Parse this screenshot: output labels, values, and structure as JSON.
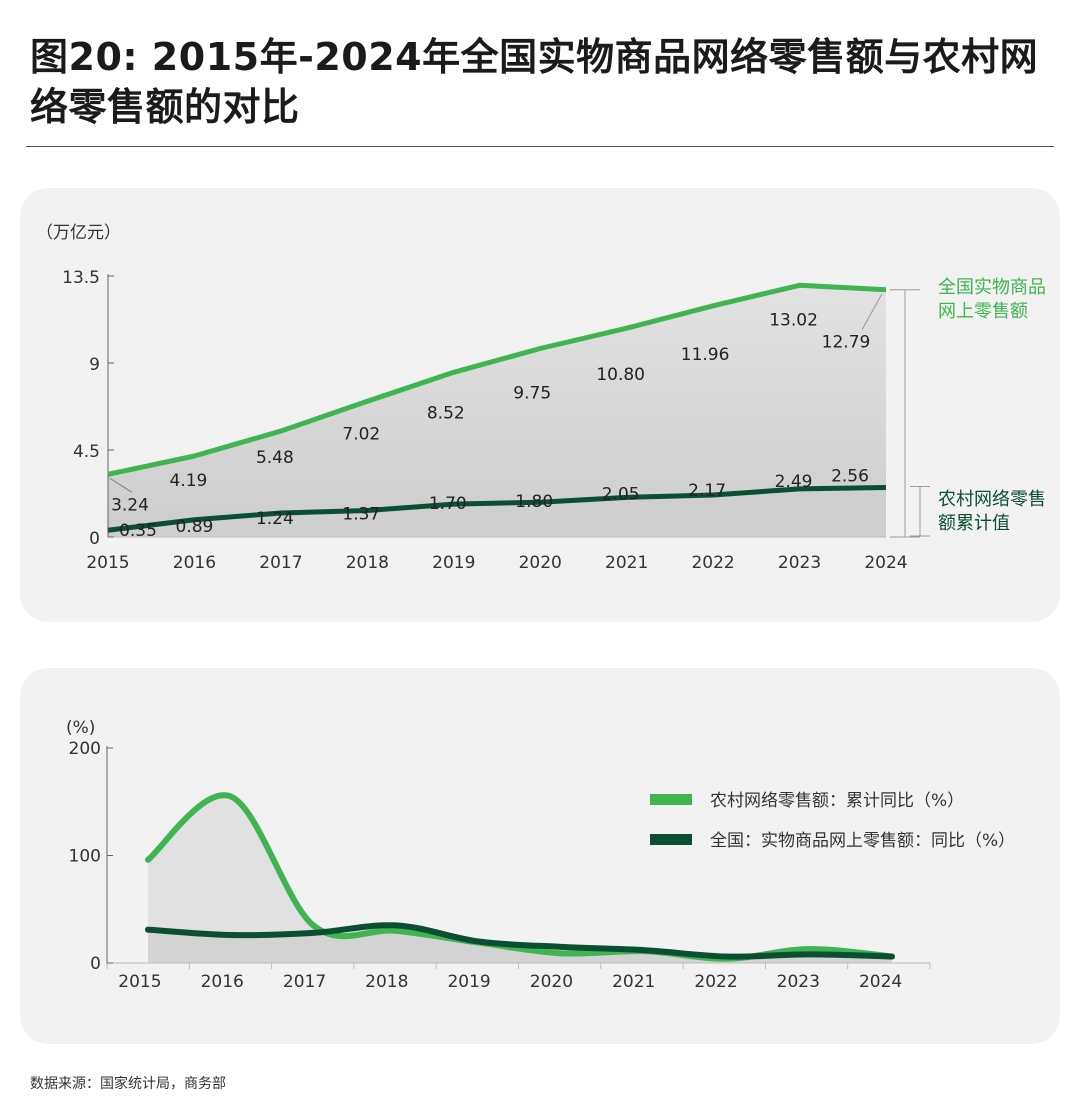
{
  "title": "图20: 2015年-2024年全国实物商品网络零售额与农村网络零售额的对比",
  "source": "数据来源：国家统计局，商务部",
  "colors": {
    "national": "#3fb450",
    "rural": "#0a4f32",
    "area_top": "#e2e2e2",
    "area_bottom": "#cdcdcd",
    "label_green": "#3fb450",
    "label_dark": "#0a4f32"
  },
  "chart_data": [
    {
      "type": "area",
      "unit": "（万亿元）",
      "categories": [
        "2015",
        "2016",
        "2017",
        "2018",
        "2019",
        "2020",
        "2021",
        "2022",
        "2023",
        "2024"
      ],
      "yticks": [
        "0",
        "4.5",
        "9",
        "13.5"
      ],
      "ylim": [
        0,
        13.5
      ],
      "series": [
        {
          "name": "全国实物商品网上零售额",
          "legend_lines": [
            "全国实物商品",
            "网上零售额"
          ],
          "values": [
            3.24,
            4.19,
            5.48,
            7.02,
            8.52,
            9.75,
            10.8,
            11.96,
            13.02,
            12.79
          ],
          "labels": [
            "3.24",
            "4.19",
            "5.48",
            "7.02",
            "8.52",
            "9.75",
            "10.80",
            "11.96",
            "13.02",
            "12.79"
          ]
        },
        {
          "name": "农村网络零售额累计值",
          "legend_lines": [
            "农村网络零售",
            "额累计值"
          ],
          "values": [
            0.35,
            0.89,
            1.24,
            1.37,
            1.7,
            1.8,
            2.05,
            2.17,
            2.49,
            2.56
          ],
          "labels": [
            "0.35",
            "0.89",
            "1.24",
            "1.37",
            "1.70",
            "1.80",
            "2.05",
            "2.17",
            "2.49",
            "2.56"
          ]
        }
      ]
    },
    {
      "type": "line",
      "unit": "(%)",
      "categories": [
        "2015",
        "2016",
        "2017",
        "2018",
        "2019",
        "2020",
        "2021",
        "2022",
        "2023",
        "2024"
      ],
      "yticks": [
        "0",
        "100",
        "200"
      ],
      "ylim": [
        0,
        200
      ],
      "series": [
        {
          "name": "农村网络零售额：累计同比（%）",
          "values": [
            96,
            155,
            35,
            30,
            19,
            9,
            11,
            4,
            13,
            6
          ]
        },
        {
          "name": "全国：实物商品网上零售额：同比（%）",
          "values": [
            31,
            26,
            28,
            35,
            20,
            15,
            12,
            6,
            8,
            6
          ]
        }
      ]
    }
  ]
}
